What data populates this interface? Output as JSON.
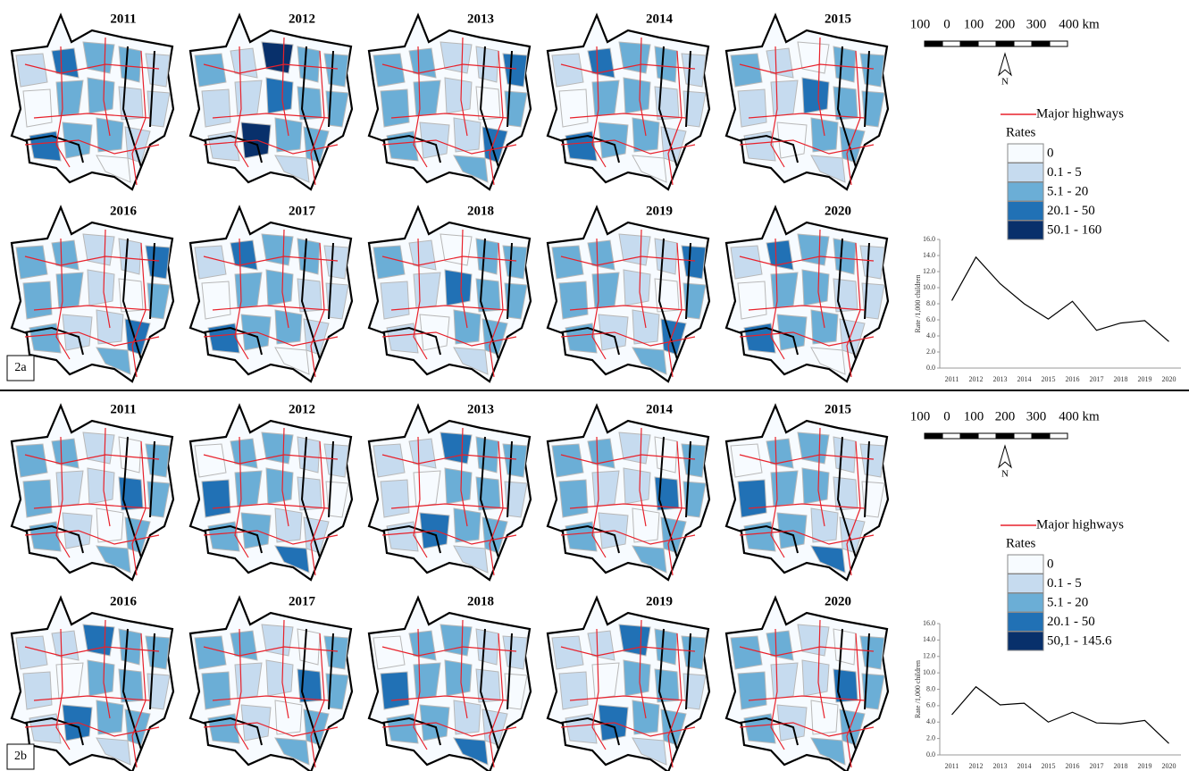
{
  "panels": [
    {
      "label": "2a",
      "maps": [
        {
          "title": "2011"
        },
        {
          "title": "2012"
        },
        {
          "title": "2013"
        },
        {
          "title": "2014"
        },
        {
          "title": "2015"
        },
        {
          "title": "2016"
        },
        {
          "title": "2017"
        },
        {
          "title": "2018"
        },
        {
          "title": "2019"
        },
        {
          "title": "2020"
        }
      ],
      "scale_labels": [
        "100",
        "0",
        "100",
        "200",
        "300",
        "400 km"
      ],
      "north": "N",
      "legend": {
        "highways": "Major highways",
        "highway_color": "#e8212b",
        "title": "Rates",
        "classes": [
          {
            "label": "0",
            "color": "#f7fbff"
          },
          {
            "label": "0.1 - 5",
            "color": "#c6dbef"
          },
          {
            "label": "5.1 - 20",
            "color": "#6baed6"
          },
          {
            "label": "20.1 - 50",
            "color": "#2171b5"
          },
          {
            "label": "50.1 - 160",
            "color": "#08306b"
          }
        ]
      }
    },
    {
      "label": "2b",
      "maps": [
        {
          "title": "2011"
        },
        {
          "title": "2012"
        },
        {
          "title": "2013"
        },
        {
          "title": "2014"
        },
        {
          "title": "2015"
        },
        {
          "title": "2016"
        },
        {
          "title": "2017"
        },
        {
          "title": "2018"
        },
        {
          "title": "2019"
        },
        {
          "title": "2020"
        }
      ],
      "scale_labels": [
        "100",
        "0",
        "100",
        "200",
        "300",
        "400 km"
      ],
      "north": "N",
      "legend": {
        "highways": "Major highways",
        "highway_color": "#e8212b",
        "title": "Rates",
        "classes": [
          {
            "label": "0",
            "color": "#f7fbff"
          },
          {
            "label": "0.1 - 5",
            "color": "#c6dbef"
          },
          {
            "label": "5.1 - 20",
            "color": "#6baed6"
          },
          {
            "label": "20.1 - 50",
            "color": "#2171b5"
          },
          {
            "label": "50,1 - 145.6",
            "color": "#08306b"
          }
        ]
      }
    }
  ],
  "chart_data": [
    {
      "type": "line",
      "y_label": "Rate /1,000 children",
      "color": "#000000",
      "categories": [
        "2011",
        "2012",
        "2013",
        "2014",
        "2015",
        "2016",
        "2017",
        "2018",
        "2019",
        "2020"
      ],
      "values": [
        8.4,
        13.8,
        10.5,
        8.0,
        6.1,
        8.3,
        4.7,
        5.6,
        5.9,
        3.3
      ],
      "ylim": [
        0,
        16
      ],
      "yticks": [
        {
          "value": 0,
          "label": "0.0"
        },
        {
          "value": 2,
          "label": "2.0"
        },
        {
          "value": 4,
          "label": "4.0"
        },
        {
          "value": 6,
          "label": "6.0"
        },
        {
          "value": 8,
          "label": "8.0"
        },
        {
          "value": 10,
          "label": "10.0"
        },
        {
          "value": 12,
          "label": "12.0"
        },
        {
          "value": 14,
          "label": "14.0"
        },
        {
          "value": 16,
          "label": "16.0"
        }
      ]
    },
    {
      "type": "line",
      "y_label": "Rate /1,000 children",
      "color": "#000000",
      "categories": [
        "2011",
        "2012",
        "2013",
        "2014",
        "2015",
        "2016",
        "2017",
        "2018",
        "2019",
        "2020"
      ],
      "values": [
        4.9,
        8.3,
        6.1,
        6.3,
        4.0,
        5.2,
        3.9,
        3.8,
        4.2,
        1.4
      ],
      "ylim": [
        0,
        16
      ],
      "yticks": [
        {
          "value": 0,
          "label": "0.0"
        },
        {
          "value": 2,
          "label": "2.0"
        },
        {
          "value": 4,
          "label": "4.0"
        },
        {
          "value": 6,
          "label": "6.0"
        },
        {
          "value": 8,
          "label": "8.0"
        },
        {
          "value": 10,
          "label": "10.0"
        },
        {
          "value": 12,
          "label": "12.0"
        },
        {
          "value": 14,
          "label": "14.0"
        },
        {
          "value": 16,
          "label": "16.0"
        }
      ]
    }
  ]
}
